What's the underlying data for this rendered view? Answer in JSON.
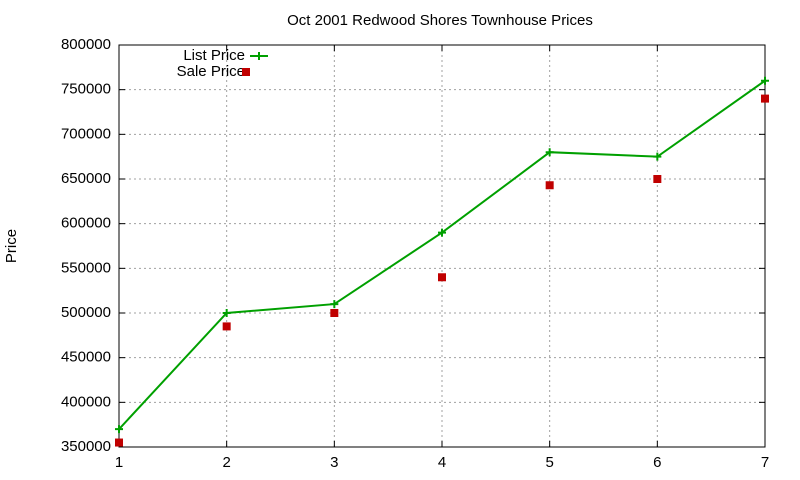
{
  "chart_data": {
    "type": "line",
    "title": "Oct 2001 Redwood Shores Townhouse Prices",
    "y_label": "Price",
    "x": [
      1,
      2,
      3,
      4,
      5,
      6,
      7
    ],
    "series": [
      {
        "name": "List Price",
        "color": "#00a000",
        "marker": "plus",
        "line": true,
        "values": [
          370000,
          500000,
          510000,
          590000,
          680000,
          675000,
          760000
        ]
      },
      {
        "name": "Sale Price",
        "color": "#c00000",
        "marker": "square",
        "line": false,
        "values": [
          355000,
          485000,
          500000,
          540000,
          643000,
          650000,
          740000
        ]
      }
    ],
    "xlim": [
      1,
      7
    ],
    "xticks": [
      1,
      2,
      3,
      4,
      5,
      6,
      7
    ],
    "ylim": [
      350000,
      800000
    ],
    "yticks": [
      350000,
      400000,
      450000,
      500000,
      550000,
      600000,
      650000,
      700000,
      750000,
      800000
    ],
    "grid": true,
    "legend": "top-left"
  }
}
